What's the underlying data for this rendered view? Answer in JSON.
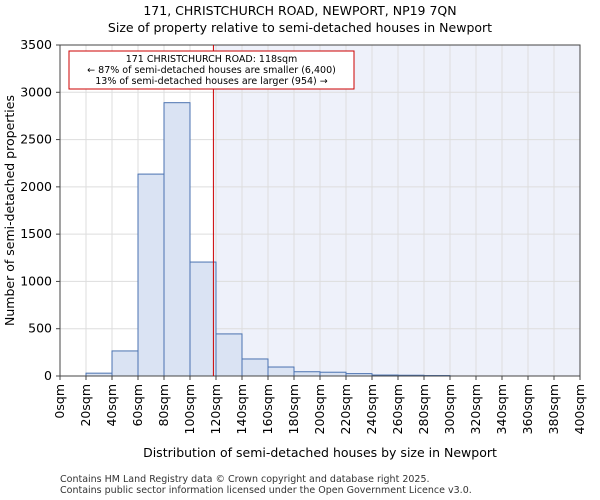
{
  "title_line1": "171, CHRISTCHURCH ROAD, NEWPORT, NP19 7QN",
  "title_line2": "Size of property relative to semi-detached houses in Newport",
  "footer_line1": "Contains HM Land Registry data © Crown copyright and database right 2025.",
  "footer_line2": "Contains public sector information licensed under the Open Government Licence v3.0.",
  "chart_data": {
    "type": "bar",
    "title": "Size of property relative to semi-detached houses in Newport",
    "xlabel": "Distribution of semi-detached houses by size in Newport",
    "ylabel": "Number of semi-detached properties",
    "bin_edges": [
      0,
      20,
      40,
      60,
      80,
      100,
      120,
      140,
      160,
      180,
      200,
      220,
      240,
      260,
      280,
      300,
      320,
      340,
      360,
      380,
      400
    ],
    "x_tick_labels": [
      "0sqm",
      "20sqm",
      "40sqm",
      "60sqm",
      "80sqm",
      "100sqm",
      "120sqm",
      "140sqm",
      "160sqm",
      "180sqm",
      "200sqm",
      "220sqm",
      "240sqm",
      "260sqm",
      "280sqm",
      "300sqm",
      "320sqm",
      "340sqm",
      "360sqm",
      "380sqm",
      "400sqm"
    ],
    "values": [
      0,
      30,
      265,
      2135,
      2890,
      1205,
      445,
      180,
      95,
      45,
      40,
      25,
      10,
      8,
      5,
      0,
      0,
      0,
      0,
      0
    ],
    "ylim": [
      0,
      3500
    ],
    "y_ticks": [
      0,
      500,
      1000,
      1500,
      2000,
      2500,
      3000,
      3500
    ],
    "marker_value": 118,
    "annotation": {
      "line1": "171 CHRISTCHURCH ROAD: 118sqm",
      "line2": "← 87% of semi-detached houses are smaller (6,400)",
      "line3": "13% of semi-detached houses are larger (954) →"
    },
    "colors": {
      "bar_fill": "#dae3f3",
      "bar_stroke": "#4a72b0",
      "marker": "#cc0000",
      "highlight_bg": "#eef1fa",
      "annotation_border": "#cc0000"
    }
  }
}
